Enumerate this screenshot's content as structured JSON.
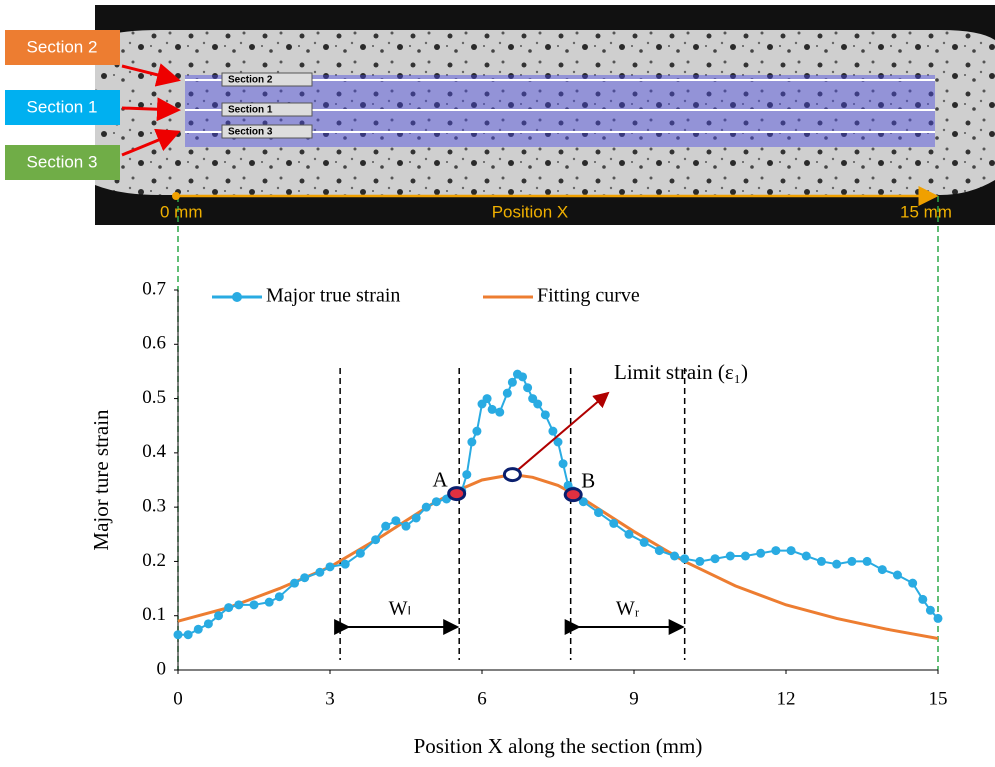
{
  "photo": {
    "section_labels": [
      {
        "text": "Section 2",
        "color": "#ed7d31"
      },
      {
        "text": "Section 1",
        "color": "#00b0f0"
      },
      {
        "text": "Section 3",
        "color": "#70ad47"
      }
    ],
    "strip_labels": [
      "Section 2",
      "Section 1",
      "Section 3"
    ],
    "scale_start": "0 mm",
    "scale_label": "Position X",
    "scale_end": "15 mm"
  },
  "chart_data": {
    "type": "line",
    "x_label": "Position X along the section (mm)",
    "y_label": "Major ture strain",
    "xlim": [
      0,
      15
    ],
    "xticks": [
      0,
      3,
      6,
      9,
      12,
      15
    ],
    "ylim": [
      0,
      0.7
    ],
    "yticks": [
      0,
      0.1,
      0.2,
      0.3,
      0.4,
      0.5,
      0.6,
      0.7
    ],
    "series": [
      {
        "name": "Major true strain",
        "color": "#29abe2",
        "markers": true,
        "x": [
          0,
          0.2,
          0.4,
          0.6,
          0.8,
          1.0,
          1.2,
          1.5,
          1.8,
          2.0,
          2.3,
          2.5,
          2.8,
          3.0,
          3.3,
          3.6,
          3.9,
          4.1,
          4.3,
          4.5,
          4.7,
          4.9,
          5.1,
          5.3,
          5.5,
          5.6,
          5.7,
          5.8,
          5.9,
          6.0,
          6.1,
          6.2,
          6.35,
          6.5,
          6.6,
          6.7,
          6.8,
          6.9,
          7.0,
          7.1,
          7.25,
          7.4,
          7.5,
          7.6,
          7.7,
          7.8,
          8.0,
          8.3,
          8.6,
          8.9,
          9.2,
          9.5,
          9.8,
          10.0,
          10.3,
          10.6,
          10.9,
          11.2,
          11.5,
          11.8,
          12.1,
          12.4,
          12.7,
          13.0,
          13.3,
          13.6,
          13.9,
          14.2,
          14.5,
          14.7,
          14.85,
          15.0
        ],
        "values": [
          0.065,
          0.065,
          0.075,
          0.085,
          0.1,
          0.115,
          0.12,
          0.12,
          0.125,
          0.135,
          0.16,
          0.17,
          0.18,
          0.19,
          0.195,
          0.215,
          0.24,
          0.265,
          0.275,
          0.265,
          0.28,
          0.3,
          0.31,
          0.315,
          0.32,
          0.33,
          0.36,
          0.42,
          0.44,
          0.49,
          0.5,
          0.48,
          0.475,
          0.51,
          0.53,
          0.545,
          0.54,
          0.52,
          0.5,
          0.49,
          0.47,
          0.44,
          0.42,
          0.38,
          0.34,
          0.33,
          0.31,
          0.29,
          0.27,
          0.25,
          0.235,
          0.22,
          0.21,
          0.205,
          0.2,
          0.205,
          0.21,
          0.21,
          0.215,
          0.22,
          0.22,
          0.21,
          0.2,
          0.195,
          0.2,
          0.2,
          0.185,
          0.175,
          0.16,
          0.13,
          0.11,
          0.095
        ]
      },
      {
        "name": "Fitting curve",
        "color": "#ed7d31",
        "markers": false,
        "x": [
          0,
          1,
          2,
          3,
          4,
          5,
          5.5,
          6,
          6.6,
          7,
          7.5,
          8,
          9,
          10,
          11,
          12,
          13,
          14,
          15
        ],
        "values": [
          0.09,
          0.115,
          0.15,
          0.19,
          0.245,
          0.305,
          0.33,
          0.35,
          0.36,
          0.355,
          0.34,
          0.315,
          0.255,
          0.2,
          0.155,
          0.12,
          0.095,
          0.075,
          0.058
        ]
      }
    ],
    "points": [
      {
        "label": "A",
        "x": 5.5,
        "y": 0.325
      },
      {
        "label": "B",
        "x": 7.8,
        "y": 0.323
      },
      {
        "label": "Limit strain (ε₁)",
        "x": 6.6,
        "y": 0.36
      }
    ],
    "vlines": [
      3.2,
      5.55,
      7.75,
      10
    ],
    "widths": [
      {
        "label": "Wₗ",
        "from": 3.2,
        "to": 5.55
      },
      {
        "label": "Wᵣ",
        "from": 7.75,
        "to": 10
      }
    ]
  }
}
